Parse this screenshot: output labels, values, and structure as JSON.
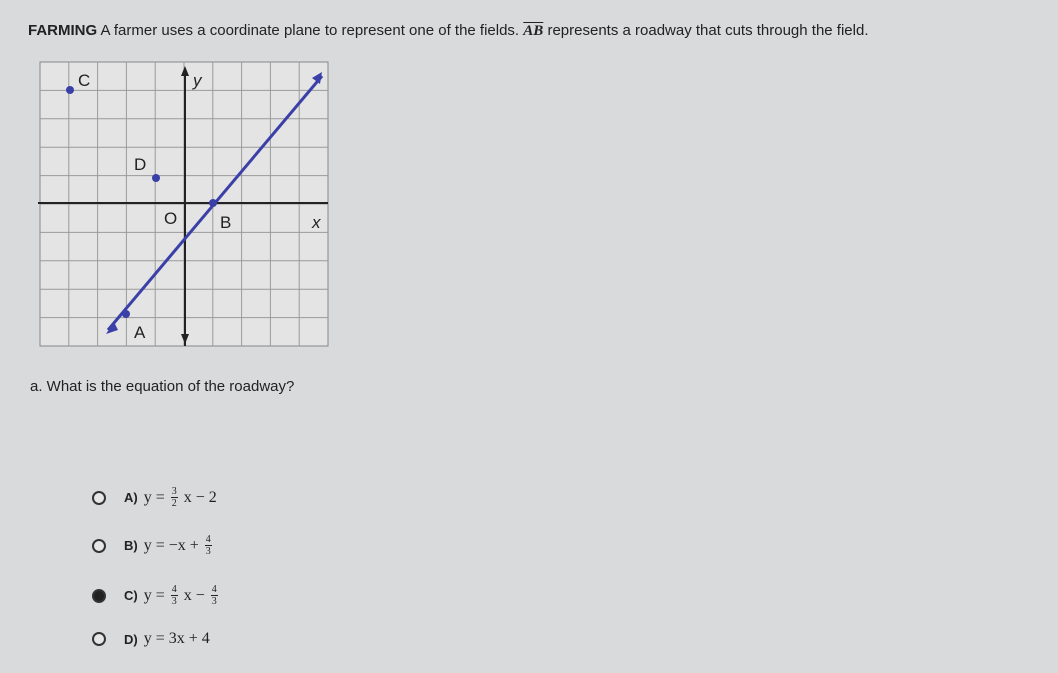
{
  "problem": {
    "label": "FARMING",
    "text": "A farmer uses a coordinate plane to represent one of the fields.",
    "segment": "AB",
    "text_after": "represents a roadway that cuts through the field."
  },
  "graph": {
    "labels": {
      "C": "C",
      "y": "y",
      "D": "D",
      "O": "O",
      "B": "B",
      "x": "x",
      "A": "A"
    }
  },
  "question": "a. What is the equation of the roadway?",
  "selected_option": 2,
  "options": [
    {
      "letter": "A)",
      "parts": [
        "y =",
        {
          "num": "3",
          "den": "2"
        },
        "x − 2"
      ]
    },
    {
      "letter": "B)",
      "parts": [
        "y = −x +",
        {
          "num": "4",
          "den": "3"
        }
      ]
    },
    {
      "letter": "C)",
      "parts": [
        "y =",
        {
          "num": "4",
          "den": "3"
        },
        "x −",
        {
          "num": "4",
          "den": "3"
        }
      ]
    },
    {
      "letter": "D)",
      "parts": [
        "y = 3x + 4"
      ]
    }
  ]
}
